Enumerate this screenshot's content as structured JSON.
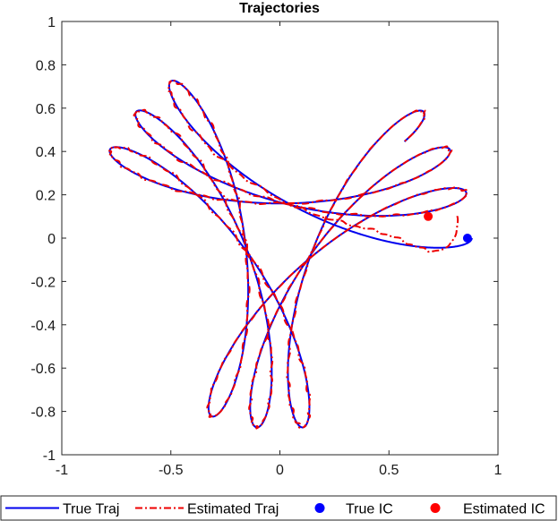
{
  "chart_data": {
    "type": "line",
    "title": "Trajectories",
    "xlabel": "",
    "ylabel": "",
    "xlim": [
      -1,
      1
    ],
    "ylim": [
      -1,
      1
    ],
    "xticks": [
      -1,
      -0.5,
      0,
      0.5,
      1
    ],
    "yticks": [
      -1,
      -0.8,
      -0.6,
      -0.4,
      -0.2,
      0,
      0.2,
      0.4,
      0.6,
      0.8,
      1
    ],
    "xtick_labels": [
      "-1",
      "-0.5",
      "0",
      "0.5",
      "1"
    ],
    "ytick_labels": [
      "-1",
      "-0.8",
      "-0.6",
      "-0.4",
      "-0.2",
      "0",
      "0.2",
      "0.4",
      "0.6",
      "0.8",
      "1"
    ],
    "grid": false,
    "legend_placement": "bottom",
    "curve": {
      "description_params": {
        "R": 0.52,
        "r": 0.36,
        "omega_ratio": -1.889
      },
      "t_max": 20.0
    },
    "series": [
      {
        "name": "True Traj",
        "kind": "line",
        "color": "#0000ee",
        "style": "solid"
      },
      {
        "name": "Estimated Traj",
        "kind": "line",
        "color": "#ee0000",
        "style": "dashdot"
      },
      {
        "name": "True IC",
        "kind": "point",
        "color": "#0000ff",
        "x": 0.86,
        "y": 0.0
      },
      {
        "name": "Estimated IC",
        "kind": "point",
        "color": "#ff0000",
        "x": 0.68,
        "y": 0.1
      }
    ]
  }
}
